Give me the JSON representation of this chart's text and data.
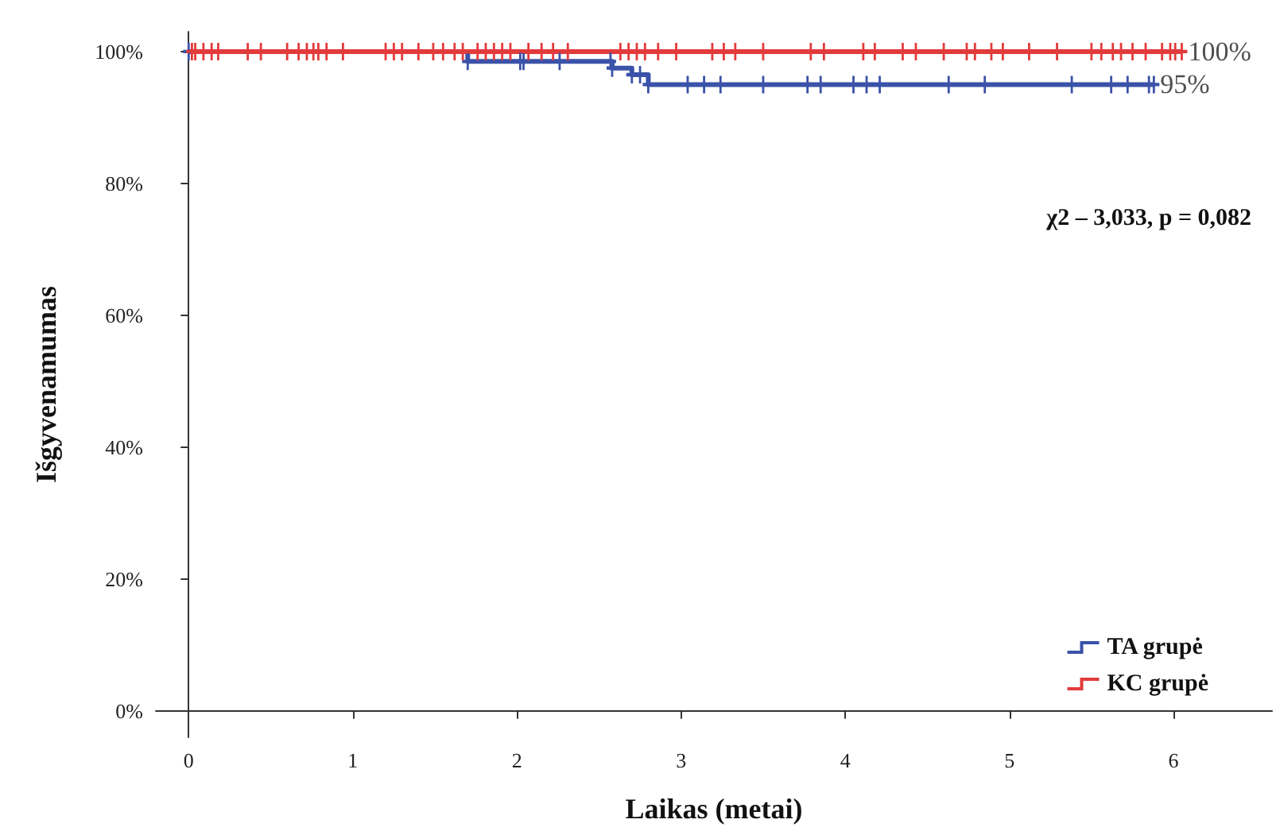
{
  "chart_data": {
    "type": "step",
    "xlabel": "Laikas (metai)",
    "ylabel": "Išgyvenamumas",
    "annotations": [
      "χ2 – 3,033, p = 0,082",
      {
        "text": "100%",
        "x": 6.05,
        "y": 100
      },
      {
        "text": "95%",
        "x": 5.88,
        "y": 95
      }
    ],
    "series": [
      {
        "name": "TA grupė",
        "color": "#3a52a8",
        "x": [
          0,
          1.7,
          2.02,
          2.04,
          2.26,
          2.57,
          2.58,
          2.7,
          2.75,
          2.8,
          3.04,
          3.14,
          3.24,
          3.5,
          3.77,
          3.85,
          4.05,
          4.13,
          4.21,
          4.63,
          4.85,
          5.38,
          5.62,
          5.72,
          5.85,
          5.88
        ],
        "values": [
          100,
          98.5,
          98.5,
          98.5,
          98.5,
          98.5,
          97.5,
          96.5,
          96.5,
          95,
          95,
          95,
          95,
          95,
          95,
          95,
          95,
          95,
          95,
          95,
          95,
          95,
          95,
          95,
          95,
          95
        ]
      },
      {
        "name": "KC grupė",
        "color": "#e23b3b",
        "x": [
          0.02,
          0.04,
          0.09,
          0.14,
          0.18,
          0.36,
          0.44,
          0.6,
          0.67,
          0.72,
          0.76,
          0.79,
          0.84,
          0.94,
          1.2,
          1.25,
          1.3,
          1.4,
          1.49,
          1.55,
          1.62,
          1.67,
          1.76,
          1.81,
          1.86,
          1.91,
          1.96,
          2.07,
          2.15,
          2.22,
          2.31,
          2.63,
          2.68,
          2.73,
          2.78,
          2.86,
          2.97,
          3.19,
          3.26,
          3.33,
          3.5,
          3.79,
          3.87,
          4.11,
          4.18,
          4.35,
          4.43,
          4.6,
          4.74,
          4.79,
          4.89,
          4.96,
          5.12,
          5.29,
          5.5,
          5.56,
          5.63,
          5.68,
          5.75,
          5.83,
          5.93,
          5.98,
          6.01,
          6.05
        ],
        "values": [
          100,
          100,
          100,
          100,
          100,
          100,
          100,
          100,
          100,
          100,
          100,
          100,
          100,
          100,
          100,
          100,
          100,
          100,
          100,
          100,
          100,
          100,
          100,
          100,
          100,
          100,
          100,
          100,
          100,
          100,
          100,
          100,
          100,
          100,
          100,
          100,
          100,
          100,
          100,
          100,
          100,
          100,
          100,
          100,
          100,
          100,
          100,
          100,
          100,
          100,
          100,
          100,
          100,
          100,
          100,
          100,
          100,
          100,
          100,
          100,
          100,
          100,
          100,
          100
        ]
      }
    ],
    "xlim": [
      -0.2,
      6.6
    ],
    "ylim": [
      -4,
      103
    ],
    "xticks": [
      0,
      1,
      2,
      3,
      4,
      5,
      6
    ],
    "yticks": [
      {
        "value": 0,
        "label": "0%"
      },
      {
        "value": 20,
        "label": "20%"
      },
      {
        "value": 40,
        "label": "40%"
      },
      {
        "value": 60,
        "label": "60%"
      },
      {
        "value": 80,
        "label": "80%"
      },
      {
        "value": 100,
        "label": "100%"
      }
    ],
    "grid": false,
    "legend": "bottom right",
    "marker": "cross",
    "line_style": "solid"
  }
}
